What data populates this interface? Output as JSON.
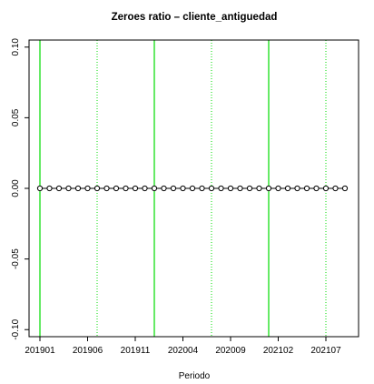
{
  "chart_data": {
    "type": "line",
    "title": "Zeroes ratio  –  cliente_antiguedad",
    "xlabel": "Periodo",
    "ylabel": "",
    "x_tick_labels": [
      "201901",
      "201906",
      "201911",
      "202004",
      "202009",
      "202102",
      "202107"
    ],
    "y_tick_labels": [
      "-0.10",
      "-0.05",
      "0.00",
      "0.05",
      "0.10"
    ],
    "ylim": [
      -0.105,
      0.105
    ],
    "x_start_index": 0,
    "x_end_index": 32,
    "series": [
      {
        "values": [
          0,
          0,
          0,
          0,
          0,
          0,
          0,
          0,
          0,
          0,
          0,
          0,
          0,
          0,
          0,
          0,
          0,
          0,
          0,
          0,
          0,
          0,
          0,
          0,
          0,
          0,
          0,
          0,
          0,
          0,
          0,
          0,
          0
        ]
      }
    ],
    "vlines_solid": [
      0,
      12,
      24
    ],
    "vlines_dotted": [
      6,
      18,
      30
    ],
    "colors": {
      "line": "#000000",
      "vline": "#00dd00"
    }
  }
}
